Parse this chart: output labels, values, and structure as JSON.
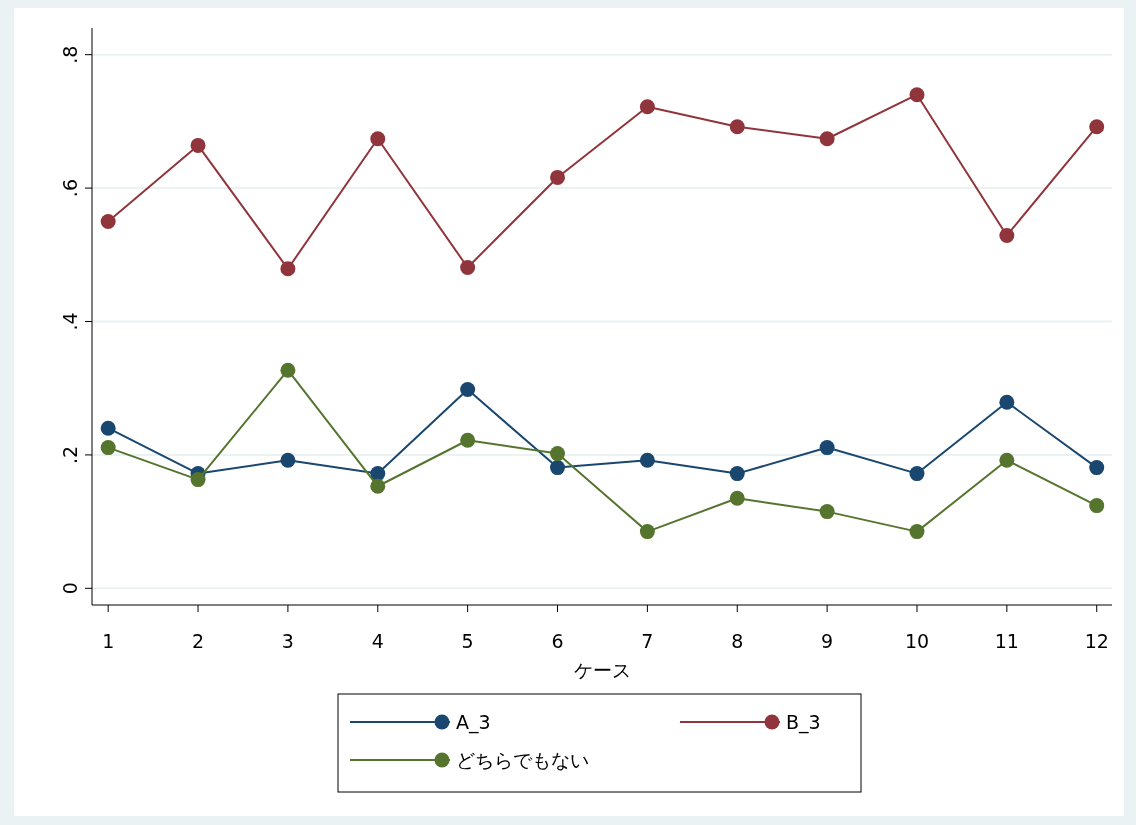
{
  "chart_data": {
    "type": "line",
    "xlabel": "ケース",
    "x": [
      1,
      2,
      3,
      4,
      5,
      6,
      7,
      8,
      9,
      10,
      11,
      12
    ],
    "xlim": [
      0.82,
      12.17
    ],
    "xticks": [
      1,
      2,
      3,
      4,
      5,
      6,
      7,
      8,
      9,
      10,
      11,
      12
    ],
    "ylim": [
      -0.025,
      0.84
    ],
    "yticks": [
      {
        "value": 0,
        "label": "0"
      },
      {
        "value": 0.2,
        "label": ".2"
      },
      {
        "value": 0.4,
        "label": ".4"
      },
      {
        "value": 0.6,
        "label": ".6"
      },
      {
        "value": 0.8,
        "label": ".8"
      }
    ],
    "grid": "y",
    "legend": "bottom",
    "marker": "circle",
    "line_style": "solid",
    "series": [
      {
        "name": "A_3",
        "color": "#1a476f",
        "values": [
          0.24,
          0.172,
          0.192,
          0.172,
          0.298,
          0.181,
          0.192,
          0.172,
          0.211,
          0.172,
          0.279,
          0.181
        ]
      },
      {
        "name": "B_3",
        "color": "#90353b",
        "values": [
          0.55,
          0.664,
          0.479,
          0.674,
          0.481,
          0.616,
          0.722,
          0.692,
          0.674,
          0.74,
          0.529,
          0.692
        ]
      },
      {
        "name": "どちらでもない",
        "color": "#55752f",
        "values": [
          0.211,
          0.163,
          0.327,
          0.153,
          0.222,
          0.202,
          0.085,
          0.135,
          0.115,
          0.085,
          0.192,
          0.124
        ]
      }
    ]
  }
}
